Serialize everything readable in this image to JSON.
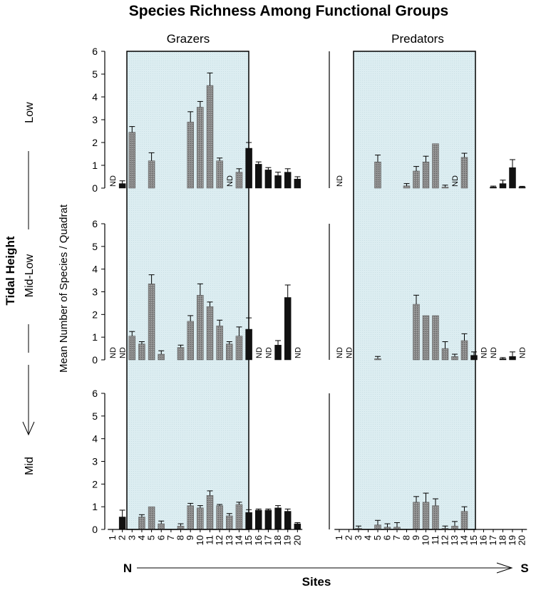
{
  "chart_data": {
    "type": "bar",
    "title": "Species Richness Among Functional Groups",
    "ylabel": "Mean Number of Species / Quadrat",
    "xlabel": "Sites",
    "row_axis_label": "Tidal Height",
    "direction_start": "N",
    "direction_end": "S",
    "ylim": [
      0,
      6
    ],
    "yticks": [
      "0",
      "1",
      "2",
      "3",
      "4",
      "5",
      "6"
    ],
    "sites": [
      "1",
      "2",
      "3",
      "4",
      "5",
      "6",
      "7",
      "8",
      "9",
      "10",
      "11",
      "12",
      "13",
      "14",
      "15",
      "16",
      "17",
      "18",
      "19",
      "20"
    ],
    "shaded_sites": [
      3,
      14
    ],
    "nd_label": "ND",
    "columns": [
      "Grazers",
      "Predators"
    ],
    "rows": [
      "Low",
      "Mid-Low",
      "Mid"
    ],
    "panels": [
      {
        "column": "Grazers",
        "row": "Low",
        "values": [
          null,
          0.2,
          2.45,
          0,
          1.2,
          0,
          0,
          0,
          2.9,
          3.55,
          4.5,
          1.2,
          null,
          0.7,
          1.75,
          1.05,
          0.8,
          0.55,
          0.7,
          0.4
        ],
        "errors": [
          0,
          0.12,
          0.25,
          0,
          0.35,
          0,
          0,
          0,
          0.45,
          0.25,
          0.55,
          0.12,
          0,
          0.15,
          0.25,
          0.1,
          0.1,
          0.15,
          0.15,
          0.1
        ]
      },
      {
        "column": "Predators",
        "row": "Low",
        "values": [
          null,
          0,
          0,
          0,
          1.15,
          0,
          0,
          0.1,
          0.75,
          1.15,
          1.95,
          0.05,
          null,
          1.35,
          0,
          0,
          0.05,
          0.2,
          0.9,
          0.05
        ],
        "errors": [
          0,
          0,
          0,
          0,
          0.3,
          0,
          0,
          0.1,
          0.2,
          0.25,
          0,
          0.08,
          0,
          0.18,
          0,
          0,
          0.04,
          0.15,
          0.35,
          0.03
        ]
      },
      {
        "column": "Grazers",
        "row": "Mid-Low",
        "values": [
          null,
          null,
          1.05,
          0.7,
          3.35,
          0.25,
          0,
          0.55,
          1.7,
          2.85,
          2.35,
          1.5,
          0.7,
          1.05,
          1.35,
          null,
          null,
          0.65,
          2.75,
          null
        ],
        "errors": [
          0,
          0,
          0.2,
          0.1,
          0.4,
          0.15,
          0,
          0.1,
          0.25,
          0.5,
          0.2,
          0.25,
          0.1,
          0.4,
          0.5,
          0,
          0,
          0.2,
          0.55,
          0
        ]
      },
      {
        "column": "Predators",
        "row": "Mid-Low",
        "values": [
          null,
          null,
          0,
          0,
          0.05,
          0,
          0,
          0,
          2.45,
          1.95,
          1.95,
          0.5,
          0.15,
          0.85,
          0.2,
          null,
          null,
          0.05,
          0.15,
          null
        ],
        "errors": [
          0,
          0,
          0,
          0,
          0.1,
          0,
          0,
          0,
          0.4,
          0,
          0,
          0.3,
          0.1,
          0.3,
          0.15,
          0,
          0,
          0.05,
          0.2,
          0
        ]
      },
      {
        "column": "Grazers",
        "row": "Mid",
        "values": [
          0,
          0.55,
          0,
          0.55,
          1.0,
          0.25,
          0,
          0.15,
          1.05,
          0.95,
          1.5,
          1.05,
          0.6,
          1.1,
          0.75,
          0.85,
          0.85,
          0.95,
          0.8,
          0.25
        ],
        "errors": [
          0,
          0.3,
          0,
          0.1,
          0,
          0.12,
          0,
          0.1,
          0.1,
          0.1,
          0.2,
          0.05,
          0.1,
          0.1,
          0.12,
          0.05,
          0.05,
          0.1,
          0.1,
          0.05
        ]
      },
      {
        "column": "Predators",
        "row": "Mid",
        "values": [
          0,
          0,
          0.05,
          0,
          0.2,
          0.1,
          0.1,
          0,
          1.2,
          1.2,
          1.05,
          0.05,
          0.15,
          0.8,
          0,
          0,
          0,
          0,
          0,
          0
        ],
        "errors": [
          0,
          0,
          0.1,
          0,
          0.2,
          0.15,
          0.2,
          0,
          0.25,
          0.4,
          0.3,
          0.1,
          0.2,
          0.2,
          0,
          0,
          0,
          0,
          0,
          0
        ]
      }
    ],
    "colors": {
      "shade": "#dcedf1",
      "bar_dark": "#111111",
      "bar_gray": "#7a7a7a"
    }
  }
}
